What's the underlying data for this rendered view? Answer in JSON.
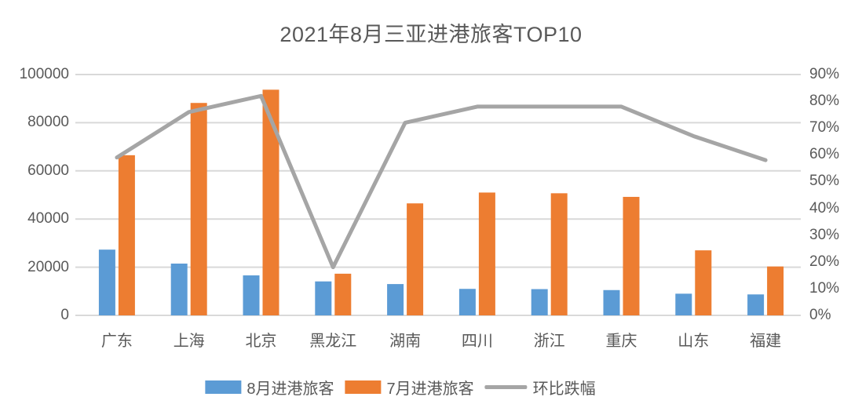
{
  "chart_data": {
    "type": "combo-bar-line",
    "title": "2021年8月三亚进港旅客TOP10",
    "categories": [
      "广东",
      "上海",
      "北京",
      "黑龙江",
      "湖南",
      "四川",
      "浙江",
      "重庆",
      "山东",
      "福建"
    ],
    "series": [
      {
        "name": "8月进港旅客",
        "type": "bar",
        "axis": "left",
        "color": "#5B9BD5",
        "values": [
          27300,
          21500,
          16600,
          14100,
          13000,
          11000,
          10900,
          10500,
          9000,
          8700
        ]
      },
      {
        "name": "7月进港旅客",
        "type": "bar",
        "axis": "left",
        "color": "#ED7D31",
        "values": [
          66500,
          88200,
          93700,
          17300,
          46500,
          51000,
          50700,
          49200,
          27000,
          20300
        ]
      },
      {
        "name": "环比跌幅",
        "type": "line",
        "axis": "right",
        "color": "#A5A5A5",
        "unit": "%",
        "values": [
          59,
          76,
          82,
          18,
          72,
          78,
          78,
          78,
          67,
          58
        ]
      }
    ],
    "left_axis": {
      "min": 0,
      "max": 100000,
      "step": 20000,
      "tick_labels": [
        "0",
        "20000",
        "40000",
        "60000",
        "80000",
        "100000"
      ]
    },
    "right_axis": {
      "min": 0,
      "max": 90,
      "step": 10,
      "tick_labels": [
        "0%",
        "10%",
        "20%",
        "30%",
        "40%",
        "50%",
        "60%",
        "70%",
        "80%",
        "90%"
      ]
    },
    "grid": "horizontal",
    "legend_position": "bottom",
    "colors": {
      "text": "#595959",
      "gridline": "#D9D9D9",
      "background": "#FFFFFF"
    }
  }
}
